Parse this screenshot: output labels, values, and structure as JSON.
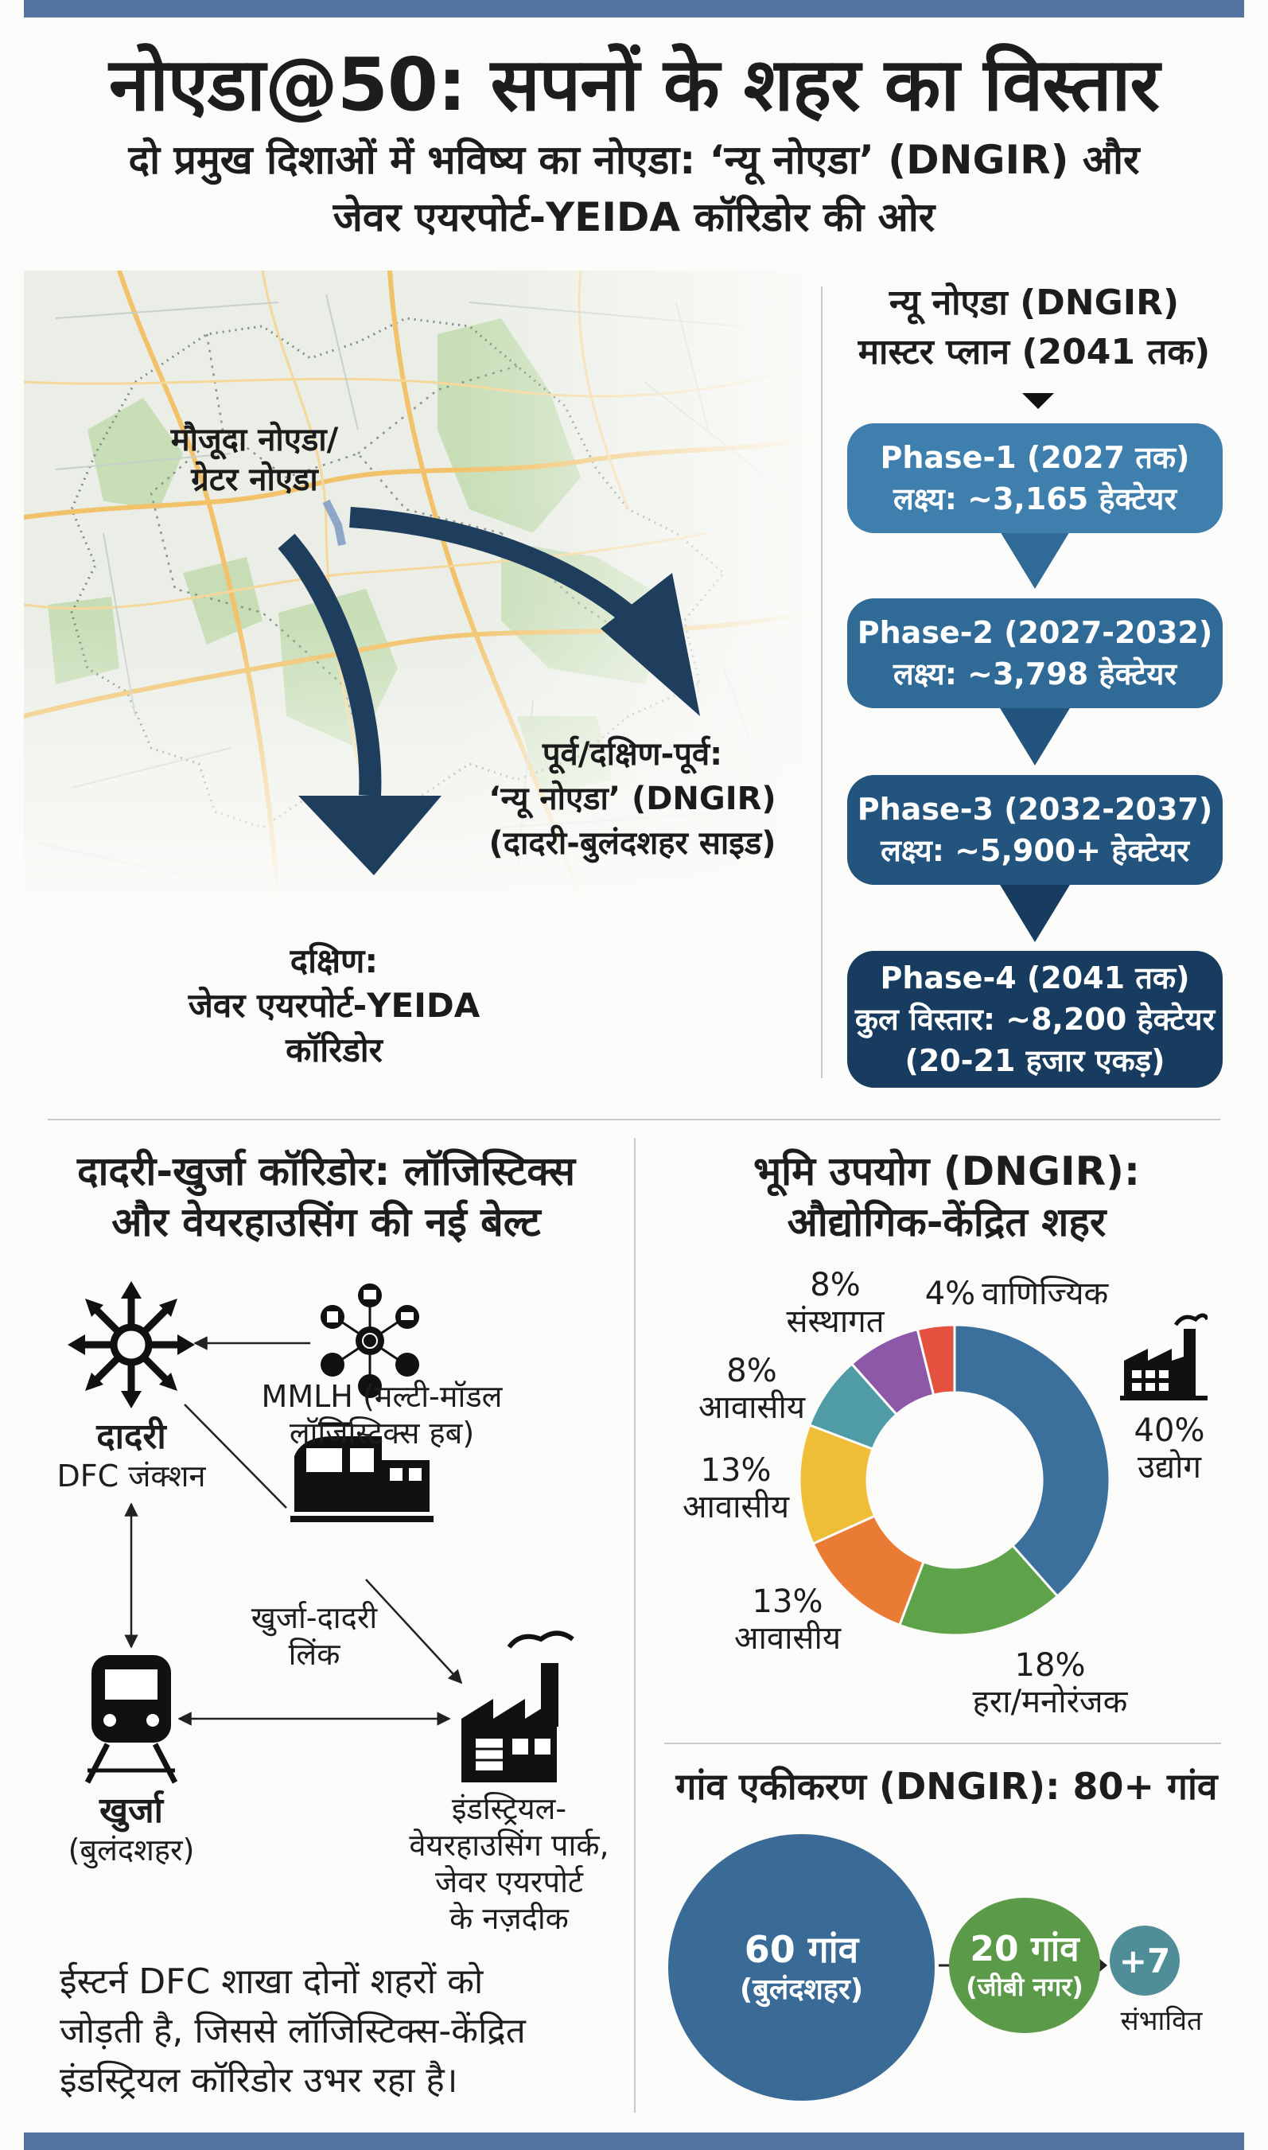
{
  "header": {
    "title": "नोएडा@50: सपनों के शहर का विस्तार",
    "subtitle_line1": "दो प्रमुख दिशाओं में भविष्य का नोएडा: ‘न्यू नोएडा’ (DNGIR) और",
    "subtitle_line2": "जेवर एयरपोर्ट-YEIDA कॉरिडोर की ओर"
  },
  "map": {
    "current_line1": "मौजूदा नोएडा/",
    "current_line2": "ग्रेटर नोएडा",
    "east_line1": "पूर्व/दक्षिण-पूर्व:",
    "east_line2": "‘न्यू नोएडा’ (DNGIR)",
    "east_line3": "(दादरी-बुलंदशहर साइड)",
    "south_line1": "दक्षिण:",
    "south_line2": "जेवर एयरपोर्ट-YEIDA",
    "south_line3": "कॉरिडोर"
  },
  "master_plan": {
    "title_line1": "न्यू नोएडा (DNGIR)",
    "title_line2": "मास्टर प्लान (2041 तक)",
    "phases": [
      {
        "line1": "Phase-1 (2027 तक)",
        "line2": "लक्ष्य: ~3,165 हेक्टेयर",
        "color": "#3f7fae"
      },
      {
        "line1": "Phase-2 (2027-2032)",
        "line2": "लक्ष्य: ~3,798 हेक्टेयर",
        "color": "#306a97"
      },
      {
        "line1": "Phase-3 (2032-2037)",
        "line2": "लक्ष्य: ~5,900+ हेक्टेयर",
        "color": "#23547e"
      },
      {
        "line1": "Phase-4 (2041 तक)",
        "line2": "कुल विस्तार: ~8,200 हेक्टेयर",
        "line3": "(20-21 हजार एकड़)",
        "color": "#173c5f"
      }
    ]
  },
  "corridor": {
    "title_line1": "दादरी-खुर्जा कॉरिडोर: लॉजिस्टिक्स",
    "title_line2": "और वेयरहाउसिंग की नई बेल्ट",
    "dadri_name": "दादरी",
    "dadri_sub": "DFC जंक्शन",
    "mmlh_line1": "MMLH (मल्टी-मॉडल",
    "mmlh_line2": "लॉजिस्टिक्स हब)",
    "link_line1": "खुर्जा-दादरी",
    "link_line2": "लिंक",
    "khurja_name": "खुर्जा",
    "khurja_sub": "(बुलंदशहर)",
    "park_line1": "इंडस्ट्रियल-",
    "park_line2": "वेयरहाउसिंग पार्क,",
    "park_line3": "जेवर एयरपोर्ट",
    "park_line4": "के नज़दीक",
    "note_line1": "ईस्टर्न  DFC शाखा दोनों शहरों को",
    "note_line2": "जोड़ती है, जिससे लॉजिस्टिक्स-केंद्रित",
    "note_line3": "इंडस्ट्रियल कॉरिडोर उभर रहा है।"
  },
  "land_use": {
    "title_line1": "भूमि उपयोग (DNGIR):",
    "title_line2": "औद्योगिक-केंद्रित शहर",
    "slices": [
      {
        "pct": "40%",
        "label": "उद्योग",
        "value": 40,
        "color": "#3b6f9c"
      },
      {
        "pct": "18%",
        "label": "हरा/मनोरंजक",
        "value": 18,
        "color": "#5ea34a"
      },
      {
        "pct": "13%",
        "label": "आवासीय",
        "value": 13,
        "color": "#e97b34"
      },
      {
        "pct": "13%",
        "label": "आवासीय",
        "value": 13,
        "color": "#f0bd37"
      },
      {
        "pct": "8%",
        "label": "आवासीय",
        "value": 8,
        "color": "#4f9ba6"
      },
      {
        "pct": "8%",
        "label": "संस्थागत",
        "value": 8,
        "color": "#8d58a8"
      },
      {
        "pct": "4%",
        "label": "वाणिज्यिक",
        "value": 4,
        "color": "#e4513f"
      }
    ]
  },
  "villages": {
    "title": "गांव एकीकरण (DNGIR): 80+ गांव",
    "big_line1": "60 गांव",
    "big_line2": "(बुलंदशहर)",
    "mid_line1": "20 गांव",
    "mid_line2": "(जीबी नगर)",
    "small": "+7",
    "small_label": "संभावित"
  }
}
